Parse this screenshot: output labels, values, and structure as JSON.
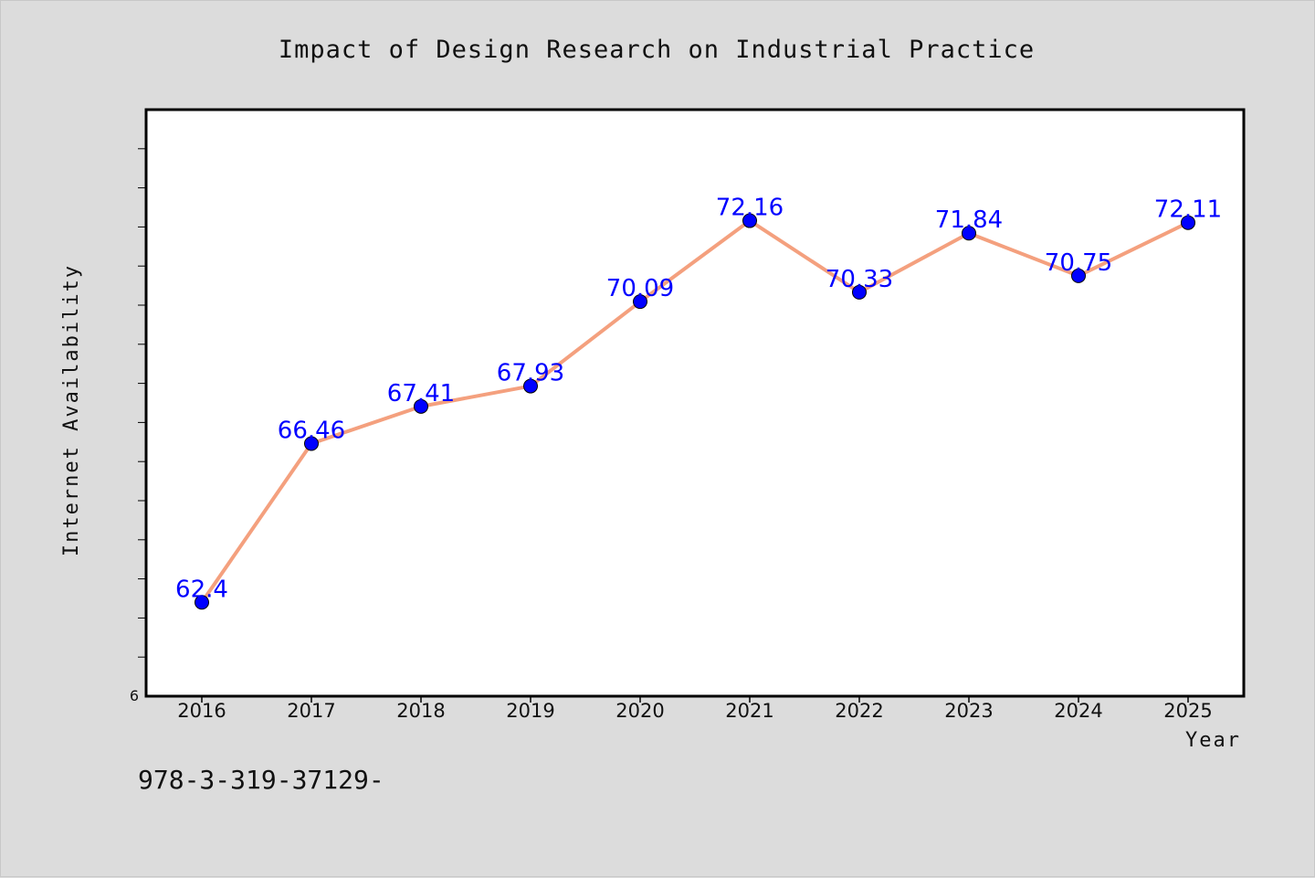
{
  "chart_data": {
    "type": "line",
    "title": "Impact of Design Research on Industrial Practice",
    "xlabel": "Year",
    "ylabel": "Internet Availability",
    "x": [
      "2016",
      "2017",
      "2018",
      "2019",
      "2020",
      "2021",
      "2022",
      "2023",
      "2024",
      "2025"
    ],
    "series": [
      {
        "values": [
          62.4,
          66.46,
          67.41,
          67.93,
          70.09,
          72.16,
          70.33,
          71.84,
          70.75,
          72.11
        ],
        "labels": [
          "62.4",
          "66.46",
          "67.41",
          "67.93",
          "70.09",
          "72.16",
          "70.33",
          "71.84",
          "70.75",
          "72.11"
        ],
        "line_color": "#f4a07e",
        "marker_color": "#0000ff"
      }
    ],
    "ylim": [
      60,
      75
    ],
    "ytick_label_shown": "6",
    "grid": false,
    "legend": "none"
  },
  "footer": {
    "code": "978-3-319-37129-"
  }
}
